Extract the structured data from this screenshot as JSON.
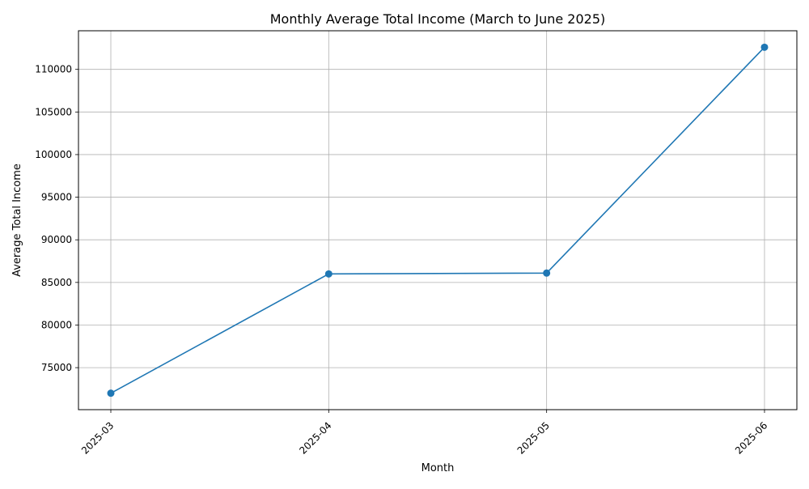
{
  "chart_data": {
    "type": "line",
    "title": "Monthly Average Total Income (March to June 2025)",
    "xlabel": "Month",
    "ylabel": "Average Total Income",
    "categories": [
      "2025-03",
      "2025-04",
      "2025-05",
      "2025-06"
    ],
    "series": [
      {
        "values": [
          72000,
          86000,
          86100,
          112600
        ],
        "color": "#1f77b4",
        "marker": "circle"
      }
    ],
    "yticks": [
      75000,
      80000,
      85000,
      90000,
      95000,
      100000,
      105000,
      110000
    ],
    "ylim": [
      70070,
      114530
    ],
    "grid": true,
    "xtick_rotation": 45
  }
}
